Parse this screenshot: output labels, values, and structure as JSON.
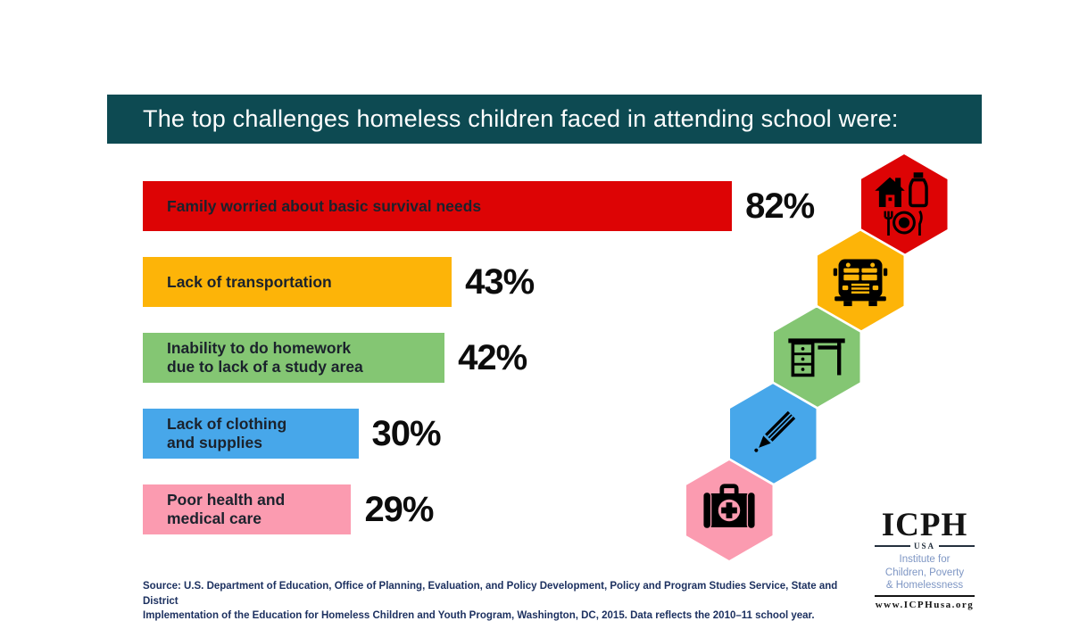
{
  "title_bar": {
    "text": "The top challenges homeless children faced in attending school were:",
    "bg_color": "#0d4a52",
    "text_color": "#ffffff"
  },
  "chart_data": {
    "type": "bar",
    "orientation": "horizontal",
    "title": "The top challenges homeless children faced in attending school were:",
    "value_suffix": "%",
    "xlim": [
      0,
      100
    ],
    "grid": false,
    "data_labels": true,
    "items": [
      {
        "label": "Family worried about basic survival needs",
        "value": 82,
        "display": "82%",
        "color": "#dd0405",
        "icon": "survival-needs-icon"
      },
      {
        "label": "Lack of transportation",
        "value": 43,
        "display": "43%",
        "color": "#fdb408",
        "icon": "school-bus-icon"
      },
      {
        "label": "Inability to do homework\ndue to lack of a study area",
        "value": 42,
        "display": "42%",
        "color": "#84c673",
        "icon": "desk-icon"
      },
      {
        "label": "Lack of clothing\nand supplies",
        "value": 30,
        "display": "30%",
        "color": "#47a7ea",
        "icon": "pencil-icon"
      },
      {
        "label": "Poor health and\nmedical care",
        "value": 29,
        "display": "29%",
        "color": "#fb9bb0",
        "icon": "first-aid-icon"
      }
    ]
  },
  "source": {
    "text": "Source: U.S. Department of Education, Office of Planning, Evaluation, and Policy Development, Policy and Program Studies Service, State and District\nImplementation of the Education for Homeless Children and Youth Program, Washington, DC, 2015. Data reflects the 2010–11 school year."
  },
  "logo": {
    "acronym": "ICPH",
    "region": "USA",
    "name_lines": "Institute for\nChildren, Poverty\n& Homelessness",
    "url": "www.ICPHusa.org",
    "name_color": "#7e96c4"
  }
}
